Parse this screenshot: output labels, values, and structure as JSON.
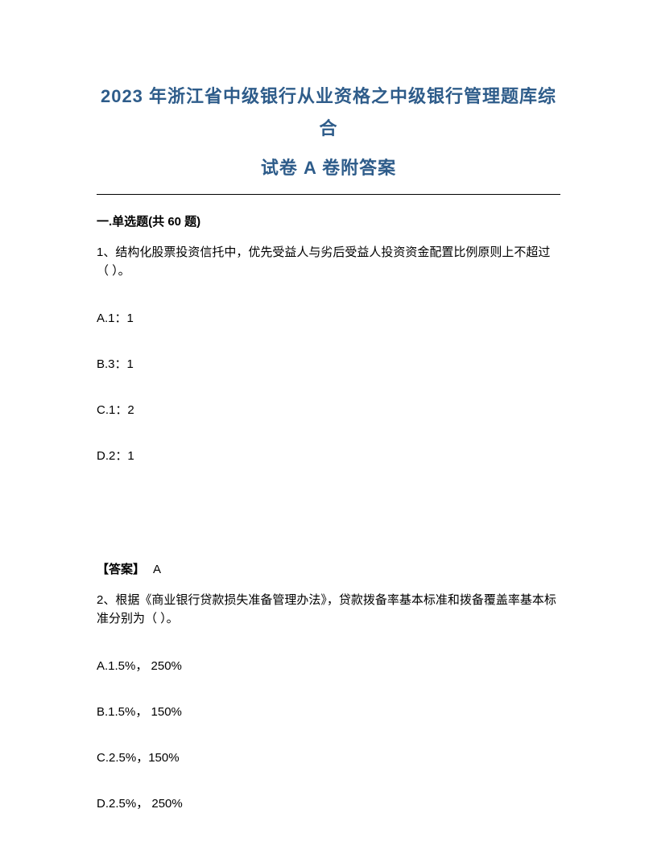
{
  "title": {
    "line1": "2023 年浙江省中级银行从业资格之中级银行管理题库综合",
    "line2": "试卷 A 卷附答案"
  },
  "section_header": "一.单选题(共 60 题)",
  "questions": [
    {
      "number": "1、",
      "text": "结构化股票投资信托中，优先受益人与劣后受益人投资资金配置比例原则上不超过（ ）。",
      "options": {
        "a": "A.1：1",
        "b": "B.3：1",
        "c": "C.1：2",
        "d": "D.2：1"
      },
      "answer_label": "【答案】",
      "answer_value": "A"
    },
    {
      "number": "2、",
      "text": "根据《商业银行贷款损失准备管理办法》，贷款拨备率基本标准和拨备覆盖率基本标准分别为（ ）。",
      "options": {
        "a": "A.1.5%， 250%",
        "b": "B.1.5%， 150%",
        "c": "C.2.5%，150%",
        "d": "D.2.5%， 250%"
      }
    }
  ]
}
